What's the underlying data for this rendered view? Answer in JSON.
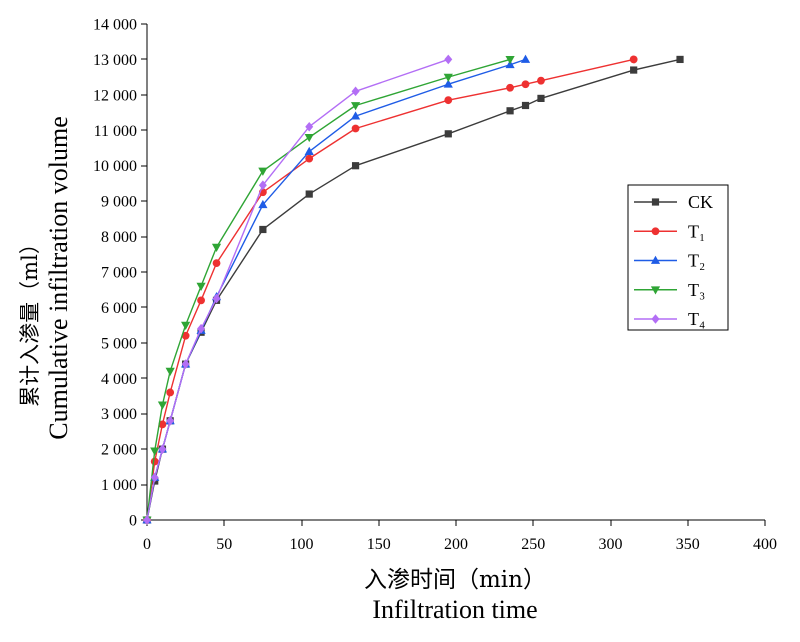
{
  "chart_data": {
    "type": "line",
    "xlabel": {
      "zh": "入渗时间（min）",
      "en": "Infiltration time"
    },
    "ylabel": {
      "zh": "累计入渗量（ml）",
      "en": "Cumulative infiltration volume"
    },
    "xlim": [
      0,
      400
    ],
    "ylim": [
      0,
      14000
    ],
    "xticks": [
      0,
      50,
      100,
      150,
      200,
      250,
      300,
      350,
      400
    ],
    "xtick_labels": [
      "0",
      "50",
      "100",
      "150",
      "200",
      "250",
      "300",
      "350",
      "400"
    ],
    "yticks": [
      0,
      1000,
      2000,
      3000,
      4000,
      5000,
      6000,
      7000,
      8000,
      9000,
      10000,
      11000,
      12000,
      13000,
      14000
    ],
    "ytick_labels": [
      "0",
      "1 000",
      "2 000",
      "3 000",
      "4 000",
      "5 000",
      "6 000",
      "7 000",
      "8 000",
      "9 000",
      "10 000",
      "11 000",
      "12 000",
      "13 000",
      "14 000"
    ],
    "grid": false,
    "legend": {
      "position": "right"
    },
    "series": [
      {
        "name": "CK",
        "color": "#3c3c3c",
        "marker": "square",
        "x": [
          0,
          5,
          10,
          15,
          25,
          35,
          45,
          75,
          105,
          135,
          195,
          235,
          245,
          255,
          315,
          345
        ],
        "y": [
          0,
          1100,
          2000,
          2800,
          4400,
          5300,
          6200,
          8200,
          9200,
          10000,
          10900,
          11550,
          11700,
          11900,
          12700,
          13000
        ]
      },
      {
        "name": "T₁",
        "color": "#ee3131",
        "marker": "circle",
        "x": [
          0,
          5,
          10,
          15,
          25,
          35,
          45,
          75,
          105,
          135,
          195,
          235,
          245,
          255,
          315
        ],
        "y": [
          0,
          1650,
          2700,
          3600,
          5200,
          6200,
          7250,
          9250,
          10200,
          11050,
          11850,
          12200,
          12300,
          12400,
          13000
        ]
      },
      {
        "name": "T₂",
        "color": "#1f5ce6",
        "marker": "triangle-up",
        "x": [
          0,
          5,
          10,
          15,
          25,
          35,
          45,
          75,
          105,
          135,
          195,
          235,
          245
        ],
        "y": [
          0,
          1200,
          2000,
          2800,
          4400,
          5350,
          6300,
          8900,
          10400,
          11400,
          12300,
          12850,
          13000
        ]
      },
      {
        "name": "T₃",
        "color": "#2fa535",
        "marker": "triangle-down",
        "x": [
          0,
          5,
          10,
          15,
          25,
          35,
          45,
          75,
          105,
          135,
          195,
          235
        ],
        "y": [
          0,
          1950,
          3250,
          4200,
          5500,
          6600,
          7700,
          9850,
          10800,
          11700,
          12500,
          13000
        ]
      },
      {
        "name": "T₄",
        "color": "#b36ef5",
        "marker": "diamond",
        "x": [
          0,
          5,
          10,
          15,
          25,
          35,
          45,
          75,
          105,
          135,
          195
        ],
        "y": [
          0,
          1200,
          2000,
          2800,
          4400,
          5400,
          6250,
          9450,
          11100,
          12100,
          13000
        ]
      }
    ]
  }
}
